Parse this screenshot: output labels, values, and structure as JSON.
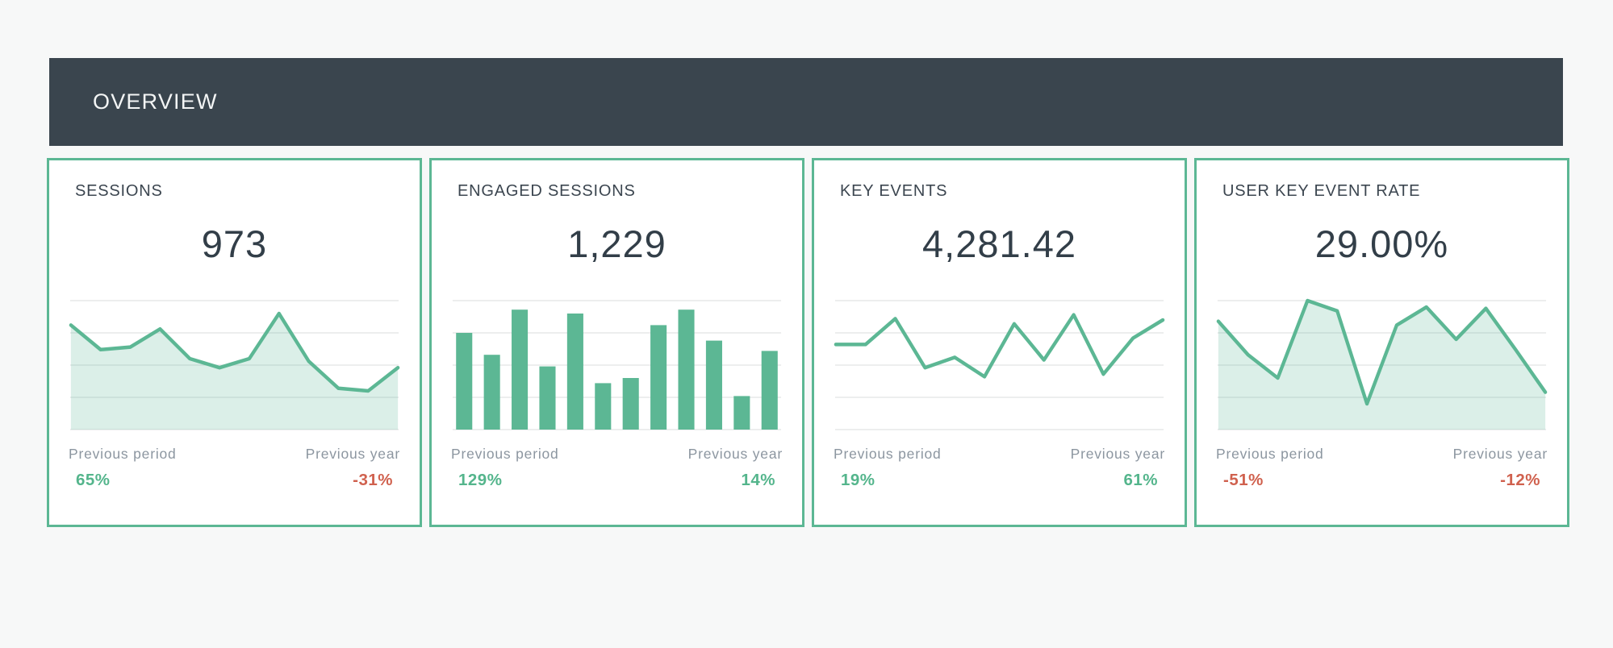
{
  "header": {
    "title": "OVERVIEW"
  },
  "colors": {
    "page_bg": "#f7f8f8",
    "header_bg": "#3a454e",
    "header_text": "#f3f5f5",
    "card_border": "#5cb794",
    "accent": "#5cb794",
    "area_fill": "rgba(92,183,148,0.22)",
    "gridline": "#e7e8e9",
    "title_text": "#3c4650",
    "value_text": "#323e48",
    "label_text": "#8c96a0",
    "positive": "#54b58c",
    "negative": "#d0614e"
  },
  "cards": [
    {
      "title": "SESSIONS",
      "value": "973",
      "comparisons": {
        "period": {
          "label": "Previous period",
          "value": "65%",
          "trend": "positive"
        },
        "year": {
          "label": "Previous year",
          "value": "-31%",
          "trend": "negative"
        }
      }
    },
    {
      "title": "ENGAGED SESSIONS",
      "value": "1,229",
      "comparisons": {
        "period": {
          "label": "Previous period",
          "value": "129%",
          "trend": "positive"
        },
        "year": {
          "label": "Previous year",
          "value": "14%",
          "trend": "positive"
        }
      }
    },
    {
      "title": "KEY EVENTS",
      "value": "4,281.42",
      "comparisons": {
        "period": {
          "label": "Previous period",
          "value": "19%",
          "trend": "positive"
        },
        "year": {
          "label": "Previous year",
          "value": "61%",
          "trend": "positive"
        }
      }
    },
    {
      "title": "USER KEY EVENT RATE",
      "value": "29.00%",
      "comparisons": {
        "period": {
          "label": "Previous period",
          "value": "-51%",
          "trend": "negative"
        },
        "year": {
          "label": "Previous year",
          "value": "-12%",
          "trend": "negative"
        }
      }
    }
  ],
  "chart_data": [
    {
      "type": "area",
      "title": "Sessions trend sparkline",
      "x": [
        1,
        2,
        3,
        4,
        5,
        6,
        7,
        8,
        9,
        10,
        11,
        12
      ],
      "x_axis": "12 equal time intervals (unlabeled in source)",
      "values": [
        81,
        62,
        64,
        78,
        55,
        48,
        55,
        90,
        53,
        32,
        30,
        48
      ],
      "value_scale": "relative 0-100, estimated from pixel heights (no numeric axis shown)",
      "ylim": [
        0,
        100
      ],
      "grid": true,
      "gridline_count": 5,
      "legend": "none"
    },
    {
      "type": "bar",
      "title": "Engaged sessions trend sparkline",
      "x": [
        1,
        2,
        3,
        4,
        5,
        6,
        7,
        8,
        9,
        10,
        11,
        12
      ],
      "x_axis": "12 equal time intervals (unlabeled in source)",
      "values": [
        75,
        58,
        93,
        49,
        90,
        36,
        40,
        81,
        93,
        69,
        26,
        61
      ],
      "value_scale": "relative 0-100, estimated from pixel heights (no numeric axis shown)",
      "ylim": [
        0,
        100
      ],
      "grid": true,
      "gridline_count": 5,
      "legend": "none"
    },
    {
      "type": "line",
      "title": "Key events trend sparkline",
      "x": [
        1,
        2,
        3,
        4,
        5,
        6,
        7,
        8,
        9,
        10,
        11,
        12
      ],
      "x_axis": "12 equal time intervals (unlabeled in source)",
      "values": [
        66,
        66,
        86,
        48,
        56,
        41,
        82,
        54,
        89,
        43,
        71,
        85
      ],
      "value_scale": "relative 0-100, estimated from pixel heights (no numeric axis shown)",
      "ylim": [
        0,
        100
      ],
      "grid": true,
      "gridline_count": 5,
      "legend": "none"
    },
    {
      "type": "area",
      "title": "User key event rate trend sparkline",
      "x": [
        1,
        2,
        3,
        4,
        5,
        6,
        7,
        8,
        9,
        10,
        11,
        12
      ],
      "x_axis": "12 equal time intervals (unlabeled in source)",
      "values": [
        84,
        58,
        40,
        100,
        92,
        20,
        81,
        95,
        70,
        94,
        62,
        29
      ],
      "value_scale": "relative 0-100, estimated from pixel heights (no numeric axis shown)",
      "ylim": [
        0,
        100
      ],
      "grid": true,
      "gridline_count": 5,
      "legend": "none"
    }
  ]
}
